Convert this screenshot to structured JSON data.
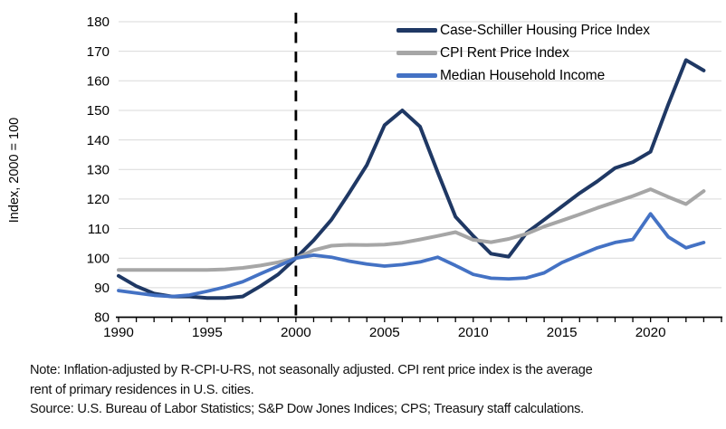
{
  "chart_data": {
    "type": "line",
    "title": "",
    "xlabel": "",
    "ylabel": "Index, 2000 = 100",
    "xlim": [
      1990,
      2024
    ],
    "ylim": [
      80,
      180
    ],
    "y_ticks": [
      80,
      90,
      100,
      110,
      120,
      130,
      140,
      150,
      160,
      170,
      180
    ],
    "x_tick_labels": [
      "1990",
      "1995",
      "2000",
      "2005",
      "2010",
      "2015",
      "2020"
    ],
    "x_tick_label_years": [
      1990,
      1995,
      2000,
      2005,
      2010,
      2015,
      2020
    ],
    "x_minor_tick_interval": 1,
    "grid": "horizontal",
    "gridline_color": "#d9d9d9",
    "axis_color": "#000000",
    "reference_line": {
      "x": 2000,
      "style": "dashed",
      "color": "#000000"
    },
    "legend_position": "top-right-inside",
    "x": [
      1990,
      1991,
      1992,
      1993,
      1994,
      1995,
      1996,
      1997,
      1998,
      1999,
      2000,
      2001,
      2002,
      2003,
      2004,
      2005,
      2006,
      2007,
      2008,
      2009,
      2010,
      2011,
      2012,
      2013,
      2014,
      2015,
      2016,
      2017,
      2018,
      2019,
      2020,
      2021,
      2022,
      2023
    ],
    "series": [
      {
        "name": "Case-Schiller Housing Price Index",
        "color": "#1f3864",
        "width": 4,
        "values": [
          94,
          90.5,
          88,
          87,
          87,
          86.5,
          86.5,
          87,
          90.5,
          94.5,
          100,
          106,
          113,
          122,
          131.5,
          145,
          150,
          144.5,
          129,
          114,
          107.5,
          101.5,
          100.5,
          108.5,
          113,
          117.5,
          122,
          126,
          130.5,
          132.5,
          136,
          152,
          167,
          163.5
        ]
      },
      {
        "name": "CPI Rent Price Index",
        "color": "#a6a6a6",
        "width": 4,
        "values": [
          96,
          96,
          96,
          96,
          96,
          96,
          96.2,
          96.7,
          97.5,
          98.6,
          100,
          102.7,
          104.2,
          104.5,
          104.4,
          104.6,
          105.2,
          106.3,
          107.5,
          108.8,
          106.2,
          105.4,
          106.5,
          108.2,
          110.7,
          112.7,
          114.8,
          117,
          119,
          121,
          123.3,
          120.7,
          118.3,
          122.7
        ]
      },
      {
        "name": "Median Household Income",
        "color": "#4472c4",
        "width": 3.8,
        "values": [
          89,
          88.2,
          87.4,
          87,
          87.5,
          88.8,
          90.2,
          92,
          94.7,
          97.3,
          100,
          101,
          100.3,
          99,
          98,
          97.3,
          97.8,
          98.7,
          100.3,
          97.5,
          94.5,
          93.2,
          93,
          93.3,
          95,
          98.5,
          101,
          103.5,
          105.3,
          106.3,
          115,
          107.2,
          103.5,
          105.3
        ]
      }
    ]
  },
  "notes": {
    "line1": "Note: Inflation-adjusted by R-CPI-U-RS, not seasonally adjusted. CPI rent price index is the average",
    "line2": "rent of primary residences in U.S. cities.",
    "line3": "Source: U.S. Bureau of Labor Statistics; S&P Dow Jones Indices; CPS; Treasury staff calculations."
  }
}
